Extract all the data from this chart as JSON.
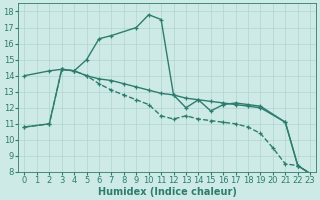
{
  "line1": {
    "x": [
      0,
      2,
      3,
      4,
      5,
      6,
      7,
      9,
      10,
      11,
      12,
      13,
      14,
      15,
      16,
      17,
      18,
      19,
      21,
      22,
      23
    ],
    "y": [
      10.8,
      11.0,
      14.4,
      14.3,
      15.0,
      16.3,
      16.5,
      17.0,
      17.8,
      17.5,
      12.8,
      12.0,
      12.5,
      11.8,
      12.2,
      12.3,
      12.2,
      12.1,
      11.1,
      8.4,
      7.9
    ],
    "linestyle": "-"
  },
  "line2": {
    "x": [
      0,
      2,
      3,
      4,
      5,
      6,
      7,
      8,
      9,
      10,
      11,
      12,
      13,
      14,
      15,
      16,
      17,
      18,
      19,
      21,
      22,
      23
    ],
    "y": [
      14.0,
      14.3,
      14.4,
      14.3,
      14.0,
      13.8,
      13.7,
      13.5,
      13.3,
      13.1,
      12.9,
      12.8,
      12.6,
      12.5,
      12.4,
      12.3,
      12.2,
      12.1,
      12.0,
      11.1,
      8.4,
      7.9
    ],
    "linestyle": "-"
  },
  "line3": {
    "x": [
      0,
      2,
      3,
      4,
      5,
      6,
      7,
      8,
      9,
      10,
      11,
      12,
      13,
      14,
      15,
      16,
      17,
      18,
      19,
      20,
      21,
      22,
      23
    ],
    "y": [
      10.8,
      11.0,
      14.4,
      14.3,
      14.0,
      13.5,
      13.1,
      12.8,
      12.5,
      12.2,
      11.5,
      11.3,
      11.5,
      11.3,
      11.2,
      11.1,
      11.0,
      10.8,
      10.4,
      9.5,
      8.5,
      8.4,
      7.9
    ],
    "linestyle": "--"
  },
  "bg_color": "#ceeae6",
  "grid_color": "#b0d4cf",
  "line_color": "#2d7d6e",
  "xlabel": "Humidex (Indice chaleur)",
  "xlim": [
    -0.5,
    23.5
  ],
  "ylim": [
    8,
    18.5
  ],
  "xticks": [
    0,
    1,
    2,
    3,
    4,
    5,
    6,
    7,
    8,
    9,
    10,
    11,
    12,
    13,
    14,
    15,
    16,
    17,
    18,
    19,
    20,
    21,
    22,
    23
  ],
  "yticks": [
    8,
    9,
    10,
    11,
    12,
    13,
    14,
    15,
    16,
    17,
    18
  ],
  "xlabel_fontsize": 7.0,
  "tick_fontsize": 6.0,
  "line_width": 1.0,
  "marker_size": 3.5
}
